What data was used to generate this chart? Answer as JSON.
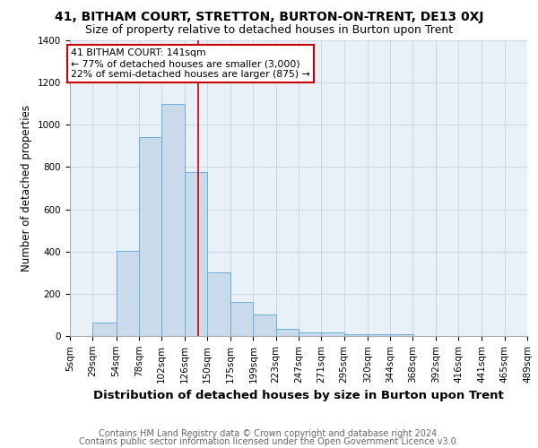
{
  "title": "41, BITHAM COURT, STRETTON, BURTON-ON-TRENT, DE13 0XJ",
  "subtitle": "Size of property relative to detached houses in Burton upon Trent",
  "xlabel": "Distribution of detached houses by size in Burton upon Trent",
  "ylabel": "Number of detached properties",
  "footer1": "Contains HM Land Registry data © Crown copyright and database right 2024.",
  "footer2": "Contains public sector information licensed under the Open Government Licence v3.0.",
  "bin_edges": [
    5,
    29,
    54,
    78,
    102,
    126,
    150,
    175,
    199,
    223,
    247,
    271,
    295,
    320,
    344,
    368,
    392,
    416,
    441,
    465,
    489
  ],
  "bin_labels": [
    "5sqm",
    "29sqm",
    "54sqm",
    "78sqm",
    "102sqm",
    "126sqm",
    "150sqm",
    "175sqm",
    "199sqm",
    "223sqm",
    "247sqm",
    "271sqm",
    "295sqm",
    "320sqm",
    "344sqm",
    "368sqm",
    "392sqm",
    "416sqm",
    "441sqm",
    "465sqm",
    "489sqm"
  ],
  "bar_heights": [
    0,
    65,
    405,
    940,
    1100,
    775,
    300,
    160,
    100,
    35,
    15,
    15,
    10,
    8,
    10,
    0,
    0,
    0,
    2,
    0
  ],
  "bar_color": "#c9daea",
  "bar_edge_color": "#6aaed6",
  "property_line_x": 141,
  "property_line_color": "#cc0000",
  "ylim": [
    0,
    1400
  ],
  "annotation_line1": "41 BITHAM COURT: 141sqm",
  "annotation_line2": "← 77% of detached houses are smaller (3,000)",
  "annotation_line3": "22% of semi-detached houses are larger (875) →",
  "annotation_box_color": "#ffffff",
  "annotation_box_edgecolor": "#cc0000",
  "title_fontsize": 10,
  "subtitle_fontsize": 9,
  "xlabel_fontsize": 9.5,
  "ylabel_fontsize": 8.5,
  "footer_fontsize": 7,
  "tick_fontsize": 7.5,
  "grid_color": "#c8d8e8",
  "background_color": "#e8f0f8",
  "yticks": [
    0,
    200,
    400,
    600,
    800,
    1000,
    1200,
    1400
  ]
}
